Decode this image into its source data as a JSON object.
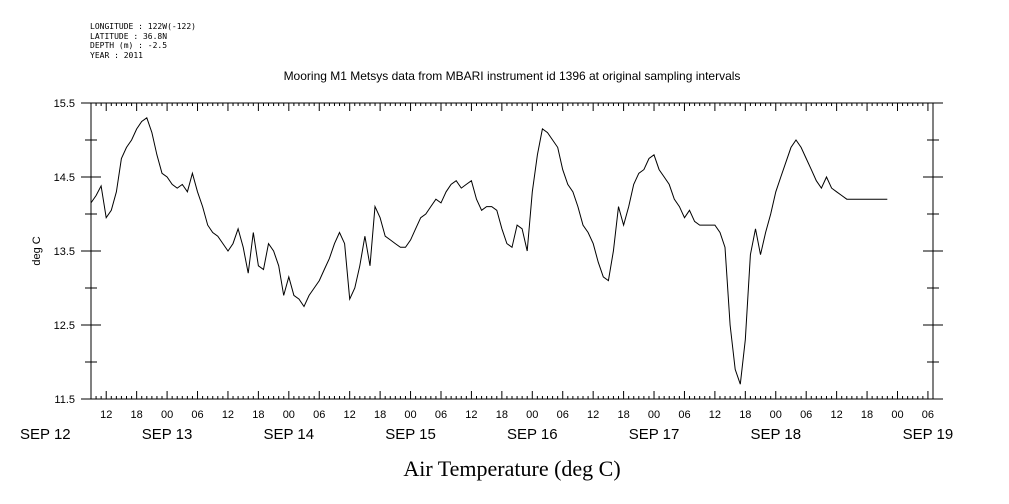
{
  "meta": {
    "longitude": "LONGITUDE : 122W(-122)",
    "latitude": "LATITUDE : 36.8N",
    "depth": "DEPTH (m) : -2.5",
    "year": "YEAR : 2011"
  },
  "chart_data": {
    "type": "line",
    "title": "Mooring M1 Metsys data from MBARI instrument id 1396 at original sampling intervals",
    "xlabel": "Air Temperature (deg C)",
    "ylabel": "deg C",
    "ylim": [
      11.5,
      15.5
    ],
    "xlim_hours": [
      9,
      175
    ],
    "yticks": [
      "15.5",
      "14.5",
      "13.5",
      "12.5",
      "11.5"
    ],
    "xtick_hour_labels": [
      "12",
      "18",
      "00",
      "06",
      "12",
      "18",
      "00",
      "06",
      "12",
      "18",
      "00",
      "06",
      "12",
      "18",
      "00",
      "06",
      "12",
      "18",
      "00",
      "06",
      "12",
      "18",
      "00",
      "06",
      "12",
      "18",
      "00",
      "06"
    ],
    "date_labels": [
      "SEP 12",
      "SEP 13",
      "SEP 14",
      "SEP 15",
      "SEP 16",
      "SEP 17",
      "SEP 18",
      "SEP 19"
    ],
    "grid": false,
    "series": [
      {
        "name": "",
        "x_hours": [
          9,
          10,
          11,
          12,
          13,
          14,
          15,
          16,
          17,
          18,
          19,
          20,
          21,
          22,
          23,
          24,
          25,
          26,
          27,
          28,
          29,
          30,
          31,
          32,
          33,
          34,
          35,
          36,
          37,
          38,
          39,
          40,
          41,
          42,
          43,
          44,
          45,
          46,
          47,
          48,
          49,
          50,
          51,
          52,
          53,
          54,
          55,
          56,
          57,
          58,
          59,
          60,
          61,
          62,
          63,
          64,
          65,
          66,
          67,
          68,
          69,
          70,
          71,
          72,
          73,
          74,
          75,
          76,
          77,
          78,
          79,
          80,
          81,
          82,
          83,
          84,
          85,
          86,
          87,
          88,
          89,
          90,
          91,
          92,
          93,
          94,
          95,
          96,
          97,
          98,
          99,
          100,
          101,
          102,
          103,
          104,
          105,
          106,
          107,
          108,
          109,
          110,
          111,
          112,
          113,
          114,
          115,
          116,
          117,
          118,
          119,
          120,
          121,
          122,
          123,
          124,
          125,
          126,
          127,
          128,
          129,
          130,
          131,
          132,
          133,
          134,
          135,
          136,
          137,
          138,
          139,
          140,
          141,
          142,
          143,
          144,
          145,
          146,
          147,
          148,
          149,
          150,
          151,
          152,
          153,
          154,
          155,
          156,
          157,
          158,
          159,
          160,
          161,
          162,
          163,
          164,
          165,
          166,
          167,
          168,
          169,
          170,
          171,
          172,
          173,
          174,
          175
        ],
        "values": [
          14.15,
          14.25,
          14.38,
          13.95,
          14.05,
          14.3,
          14.75,
          14.9,
          15.0,
          15.15,
          15.25,
          15.3,
          15.1,
          14.8,
          14.55,
          14.5,
          14.4,
          14.35,
          14.4,
          14.3,
          14.55,
          14.3,
          14.1,
          13.85,
          13.75,
          13.7,
          13.6,
          13.5,
          13.6,
          13.8,
          13.55,
          13.2,
          13.75,
          13.3,
          13.25,
          13.6,
          13.5,
          13.3,
          12.9,
          13.15,
          12.9,
          12.85,
          12.75,
          12.9,
          13.0,
          13.1,
          13.25,
          13.4,
          13.6,
          13.75,
          13.6,
          12.85,
          13.0,
          13.3,
          13.7,
          13.3,
          14.1,
          13.95,
          13.7,
          13.65,
          13.6,
          13.55,
          13.55,
          13.65,
          13.8,
          13.95,
          14.0,
          14.1,
          14.2,
          14.15,
          14.3,
          14.4,
          14.45,
          14.35,
          14.4,
          14.45,
          14.2,
          14.05,
          14.1,
          14.1,
          14.05,
          13.8,
          13.6,
          13.55,
          13.85,
          13.8,
          13.5,
          14.3,
          14.8,
          15.15,
          15.1,
          15.0,
          14.9,
          14.6,
          14.4,
          14.3,
          14.1,
          13.85,
          13.75,
          13.6,
          13.35,
          13.15,
          13.1,
          13.5,
          14.1,
          13.85,
          14.1,
          14.4,
          14.55,
          14.6,
          14.75,
          14.8,
          14.6,
          14.5,
          14.4,
          14.2,
          14.1,
          13.95,
          14.05,
          13.9,
          13.85,
          13.85,
          13.85,
          13.85,
          13.75,
          13.55,
          12.5,
          11.9,
          11.7,
          12.3,
          13.45,
          13.8,
          13.45,
          13.75,
          14.0,
          14.3,
          14.5,
          14.7,
          14.9,
          15.0,
          14.9,
          14.75,
          14.6,
          14.45,
          14.35,
          14.5,
          14.35,
          14.3,
          14.25,
          14.2,
          14.2,
          14.2,
          14.2,
          14.2,
          14.2,
          14.2,
          14.2,
          14.2,
          14.2,
          14.2,
          14.2,
          14.2,
          14.2,
          14.2,
          14.2,
          14.2,
          14.2
        ]
      }
    ]
  }
}
